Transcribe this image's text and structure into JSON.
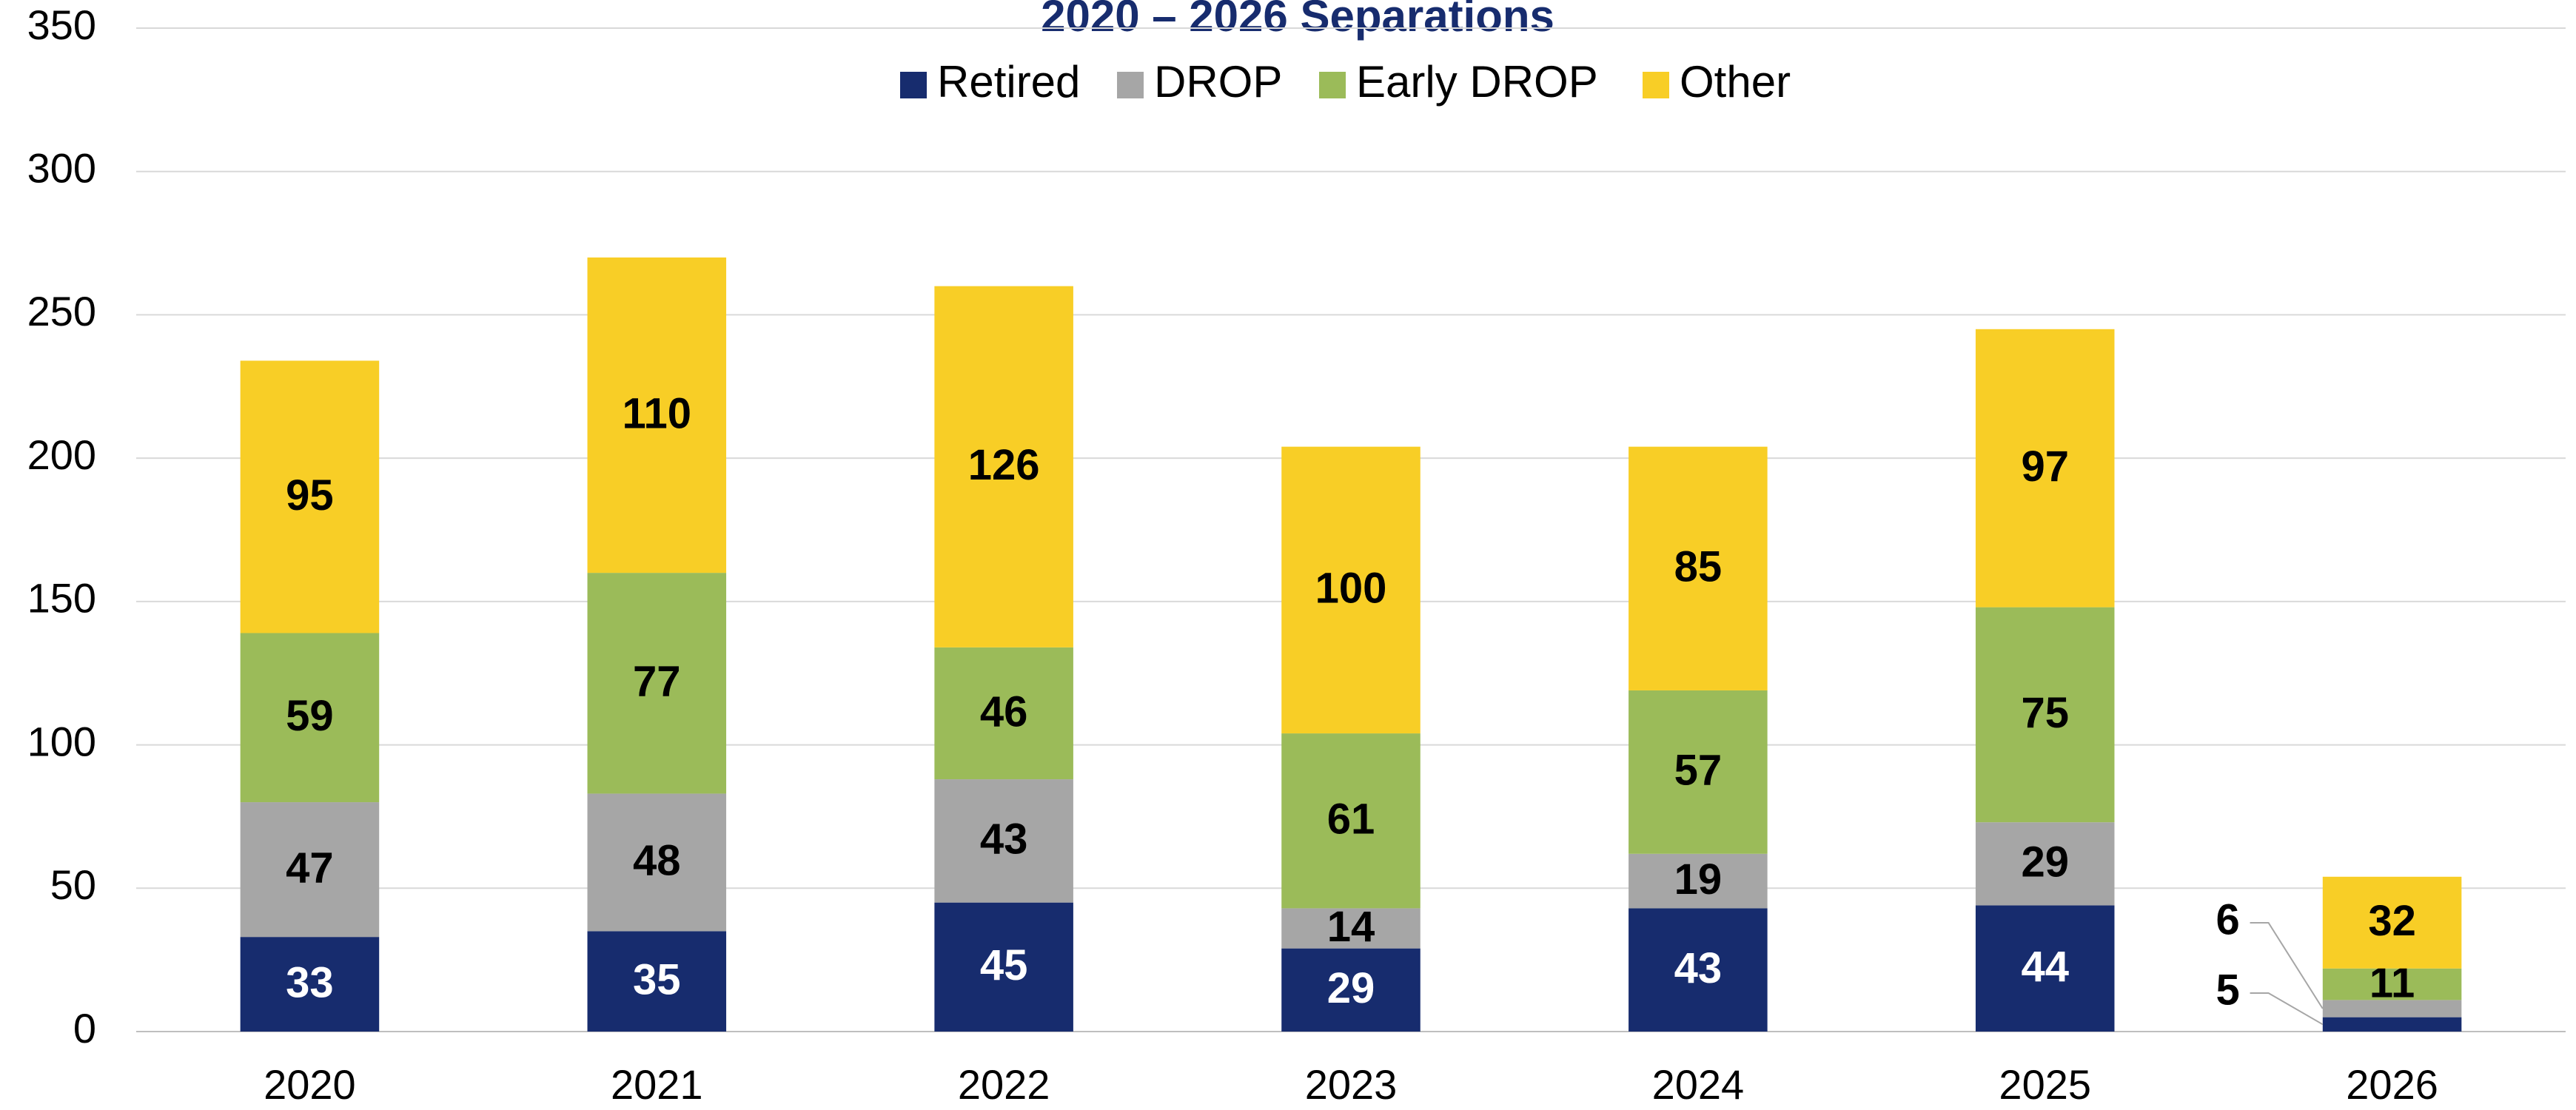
{
  "chart_data": {
    "type": "stacked_bar",
    "title": "2020 – 2026 Separations",
    "categories": [
      "2020",
      "2021",
      "2022",
      "2023",
      "2024",
      "2025",
      "2026"
    ],
    "series": [
      {
        "name": "Retired",
        "color": "#172c6e",
        "values": [
          33,
          35,
          45,
          29,
          43,
          44,
          5
        ]
      },
      {
        "name": "DROP",
        "color": "#a6a6a6",
        "values": [
          47,
          48,
          43,
          14,
          19,
          29,
          6
        ]
      },
      {
        "name": "Early DROP",
        "color": "#9bbb59",
        "values": [
          59,
          77,
          46,
          61,
          57,
          75,
          11
        ]
      },
      {
        "name": "Other",
        "color": "#f8ce26",
        "values": [
          95,
          110,
          126,
          100,
          85,
          97,
          32
        ]
      }
    ],
    "ylim": [
      0,
      350
    ],
    "yticks": [
      0,
      50,
      100,
      150,
      200,
      250,
      300,
      350
    ],
    "grid": true,
    "legend": "top"
  }
}
